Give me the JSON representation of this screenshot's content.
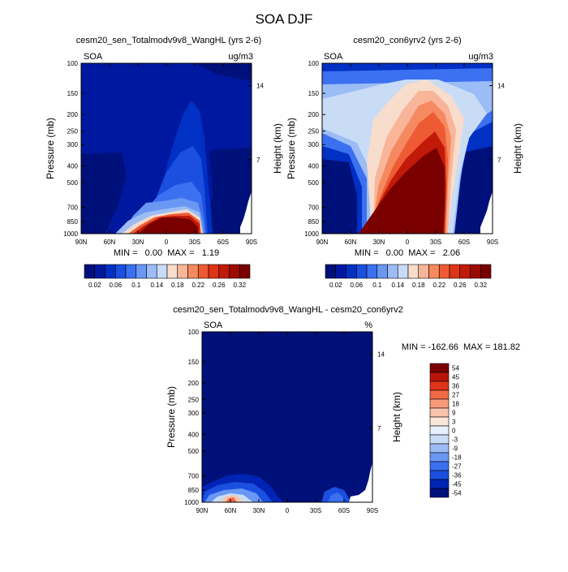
{
  "page": {
    "title": "SOA DJF"
  },
  "chart_data": [
    {
      "type": "heatmap",
      "title": "cesm20_sen_Totalmodv9v8_WangHL (yrs 2-6)",
      "left_label": "SOA",
      "units": "ug/m3",
      "ylabel": "Pressure (mb)",
      "y2label": "Height (km)",
      "x_ticks": [
        "90N",
        "60N",
        "30N",
        "0",
        "30S",
        "60S",
        "90S"
      ],
      "y_ticks": [
        100,
        150,
        200,
        250,
        300,
        400,
        500,
        700,
        850,
        1000
      ],
      "y2_ticks": [
        14,
        7
      ],
      "ylim": [
        1000,
        100
      ],
      "y_scale": "log",
      "xlim": [
        90,
        -90
      ],
      "stats": "MIN =   0.00  MAX =   1.19",
      "min": 0.0,
      "max": 1.19,
      "colorbar_labels": [
        "0.02",
        "0.06",
        "0.1",
        "0.14",
        "0.18",
        "0.22",
        "0.26",
        "0.32"
      ],
      "colorbar_levels": [
        0.02,
        0.04,
        0.06,
        0.08,
        0.1,
        0.12,
        0.14,
        0.16,
        0.18,
        0.2,
        0.22,
        0.24,
        0.26,
        0.28,
        0.3,
        0.32
      ]
    },
    {
      "type": "heatmap",
      "title": "cesm20_con6yrv2 (yrs 2-6)",
      "left_label": "SOA",
      "units": "ug/m3",
      "ylabel": "Pressure (mb)",
      "y2label": "Height (km)",
      "x_ticks": [
        "90N",
        "60N",
        "30N",
        "0",
        "30S",
        "60S",
        "90S"
      ],
      "y_ticks": [
        100,
        150,
        200,
        250,
        300,
        400,
        500,
        700,
        850,
        1000
      ],
      "y2_ticks": [
        14,
        7
      ],
      "ylim": [
        1000,
        100
      ],
      "y_scale": "log",
      "xlim": [
        90,
        -90
      ],
      "stats": "MIN =   0.00  MAX =   2.06",
      "min": 0.0,
      "max": 2.06,
      "colorbar_labels": [
        "0.02",
        "0.06",
        "0.1",
        "0.14",
        "0.18",
        "0.22",
        "0.26",
        "0.32"
      ],
      "colorbar_levels": [
        0.02,
        0.04,
        0.06,
        0.08,
        0.1,
        0.12,
        0.14,
        0.16,
        0.18,
        0.2,
        0.22,
        0.24,
        0.26,
        0.28,
        0.3,
        0.32
      ]
    },
    {
      "type": "heatmap",
      "title": "cesm20_sen_Totalmodv9v8_WangHL - cesm20_con6yrv2",
      "left_label": "SOA",
      "units": "%",
      "ylabel": "Pressure (mb)",
      "y2label": "Height (km)",
      "x_ticks": [
        "90N",
        "60N",
        "30N",
        "0",
        "30S",
        "60S",
        "90S"
      ],
      "y_ticks": [
        100,
        150,
        200,
        250,
        300,
        400,
        500,
        700,
        850,
        1000
      ],
      "y2_ticks": [
        14,
        7
      ],
      "ylim": [
        1000,
        100
      ],
      "y_scale": "log",
      "xlim": [
        90,
        -90
      ],
      "stats": "MIN = -162.66  MAX = 181.82",
      "min": -162.66,
      "max": 181.82,
      "colorbar_labels": [
        "54",
        "45",
        "36",
        "27",
        "18",
        "9",
        "3",
        "0",
        "-3",
        "-9",
        "-18",
        "-27",
        "-36",
        "-45",
        "-54"
      ],
      "colorbar_levels": [
        -54,
        -45,
        -36,
        -27,
        -18,
        -9,
        -3,
        0,
        3,
        9,
        18,
        27,
        36,
        45,
        54
      ]
    }
  ],
  "colors": {
    "seq": [
      "#00107a",
      "#00189f",
      "#0030c4",
      "#1a4fe0",
      "#3b70f0",
      "#6a97f4",
      "#9cbcf6",
      "#c9dcf6",
      "#f8dccc",
      "#f9b599",
      "#f58a60",
      "#ee5a34",
      "#de3417",
      "#c21a08",
      "#9c0a00",
      "#7a0000"
    ],
    "diff": [
      "#00107a",
      "#0024b5",
      "#1a4fe0",
      "#3b70f0",
      "#6a97f4",
      "#9cbcf6",
      "#c9dcf6",
      "#e6effb",
      "#fbe6dc",
      "#f9c4ac",
      "#f79a78",
      "#f06a44",
      "#de3417",
      "#b81406",
      "#7a0000"
    ]
  }
}
